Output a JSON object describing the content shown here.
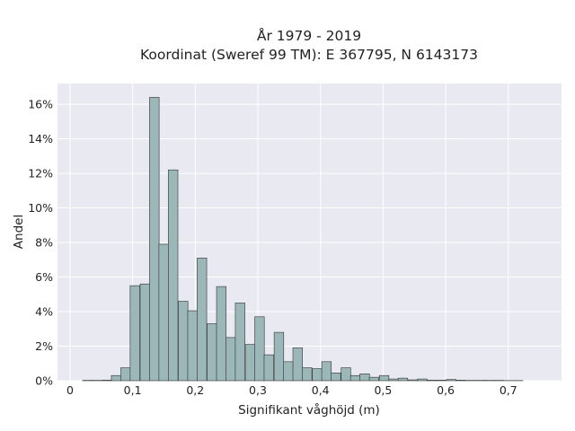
{
  "chart_data": {
    "type": "bar",
    "title": "År 1979 - 2019",
    "subtitle": "Koordinat (Sweref 99 TM): E 367795, N 6143173",
    "xlabel": "Signifikant våghöjd (m)",
    "ylabel": "Andel",
    "xlim": [
      -0.02,
      0.785
    ],
    "ylim": [
      0,
      17.2
    ],
    "x_ticks": [
      0,
      0.1,
      0.2,
      0.3,
      0.4,
      0.5,
      0.6,
      0.7
    ],
    "x_tick_labels": [
      "0",
      "0,1",
      "0,2",
      "0,3",
      "0,4",
      "0,5",
      "0,6",
      "0,7"
    ],
    "y_ticks": [
      0,
      2,
      4,
      6,
      8,
      10,
      12,
      14,
      16
    ],
    "y_tick_labels": [
      "0%",
      "2%",
      "4%",
      "6%",
      "8%",
      "10%",
      "12%",
      "14%",
      "16%"
    ],
    "bin_width": 0.0153,
    "bin_starts": [
      0.02,
      0.035,
      0.051,
      0.066,
      0.081,
      0.096,
      0.112,
      0.127,
      0.142,
      0.157,
      0.173,
      0.188,
      0.203,
      0.219,
      0.234,
      0.249,
      0.264,
      0.28,
      0.295,
      0.31,
      0.326,
      0.341,
      0.356,
      0.371,
      0.387,
      0.402,
      0.417,
      0.433,
      0.448,
      0.463,
      0.478,
      0.494,
      0.509,
      0.524,
      0.54,
      0.555,
      0.57,
      0.585,
      0.601,
      0.616,
      0.631,
      0.647,
      0.662,
      0.677,
      0.692,
      0.708
    ],
    "values": [
      0.02,
      0.02,
      0.03,
      0.3,
      0.75,
      5.5,
      5.6,
      16.4,
      7.9,
      12.2,
      4.6,
      4.05,
      7.1,
      3.3,
      5.45,
      2.5,
      4.5,
      2.1,
      3.7,
      1.5,
      2.8,
      1.1,
      1.9,
      0.75,
      0.7,
      1.1,
      0.45,
      0.75,
      0.3,
      0.4,
      0.2,
      0.3,
      0.1,
      0.15,
      0.05,
      0.1,
      0.03,
      0.03,
      0.07,
      0.03,
      0.02,
      0.02,
      0.02,
      0.02,
      0.01,
      0.01
    ],
    "bar_color": "#9cb7b7",
    "bar_edge_color": "#333333",
    "plot_background": "#e9e9f1",
    "grid": true,
    "legend": false
  }
}
